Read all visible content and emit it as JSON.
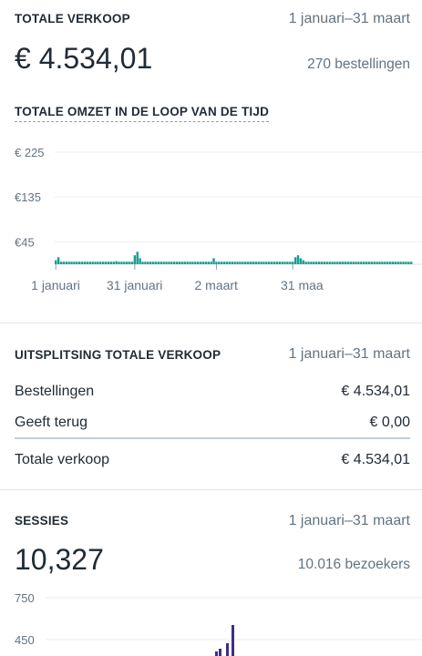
{
  "sales": {
    "title": "TOTALE VERKOOP",
    "date_range": "1 januari–31 maart",
    "total": "€ 4.534,01",
    "orders": "270 bestellingen"
  },
  "revenue_chart": {
    "title": "TOTALE OMZET IN DE LOOP VAN DE TIJD"
  },
  "breakdown": {
    "title": "UITSPLITSING TOTALE VERKOOP",
    "date_range": "1 januari–31 maart",
    "rows": [
      {
        "label": "Bestellingen",
        "value": "€ 4.534,01"
      },
      {
        "label": "Geeft terug",
        "value": "€ 0,00"
      }
    ],
    "total_label": "Totale verkoop",
    "total_value": "€ 4.534,01"
  },
  "sessions": {
    "title": "SESSIES",
    "date_range": "1 januari–31 maart",
    "total": "10,327",
    "visitors": "10.016 bezoekers"
  },
  "colors": {
    "revenue_bar": "#139e94",
    "sessions_bar": "#3f2d8c",
    "grid": "#ebeef0"
  },
  "chart_data": [
    {
      "type": "bar",
      "title": "TOTALE OMZET IN DE LOOP VAN DE TIJD",
      "y_ticks": [
        {
          "value": 225,
          "label": "€ 225"
        },
        {
          "value": 135,
          "label": "€135"
        },
        {
          "value": 45,
          "label": "€45"
        }
      ],
      "x_ticks": [
        {
          "index": 0,
          "label": "1 januari"
        },
        {
          "index": 30,
          "label": "31 januari"
        },
        {
          "index": 61,
          "label": "2 maart"
        },
        {
          "index": 90,
          "label": "31 maa"
        }
      ],
      "ylim": [
        0,
        250
      ],
      "grid": true,
      "values": [
        8,
        14,
        5,
        5,
        5,
        5,
        5,
        5,
        5,
        5,
        5,
        5,
        5,
        5,
        5,
        5,
        5,
        5,
        5,
        5,
        5,
        5,
        5,
        6,
        5,
        5,
        5,
        5,
        5,
        5,
        18,
        25,
        12,
        5,
        5,
        5,
        5,
        5,
        5,
        5,
        5,
        5,
        5,
        5,
        5,
        5,
        5,
        5,
        5,
        5,
        5,
        5,
        5,
        5,
        5,
        5,
        5,
        5,
        5,
        5,
        12,
        5,
        5,
        5,
        5,
        5,
        5,
        5,
        5,
        5,
        5,
        5,
        5,
        5,
        5,
        5,
        5,
        5,
        5,
        5,
        5,
        5,
        5,
        5,
        5,
        5,
        5,
        5,
        5,
        5,
        5,
        14,
        18,
        12,
        8,
        5,
        5,
        5,
        5,
        5,
        5,
        5,
        5,
        5,
        5,
        5,
        5,
        5,
        5,
        5,
        5,
        5,
        5,
        5,
        5,
        5,
        5,
        5,
        5,
        5,
        5,
        5,
        5,
        5,
        5,
        5,
        5,
        5,
        5,
        5,
        5,
        5,
        5,
        5,
        5,
        5
      ]
    },
    {
      "type": "bar",
      "title": "",
      "y_ticks": [
        {
          "value": 750,
          "label": "750"
        },
        {
          "value": 450,
          "label": "450"
        }
      ],
      "ylim": [
        300,
        750
      ],
      "grid": true,
      "values": []
    }
  ]
}
